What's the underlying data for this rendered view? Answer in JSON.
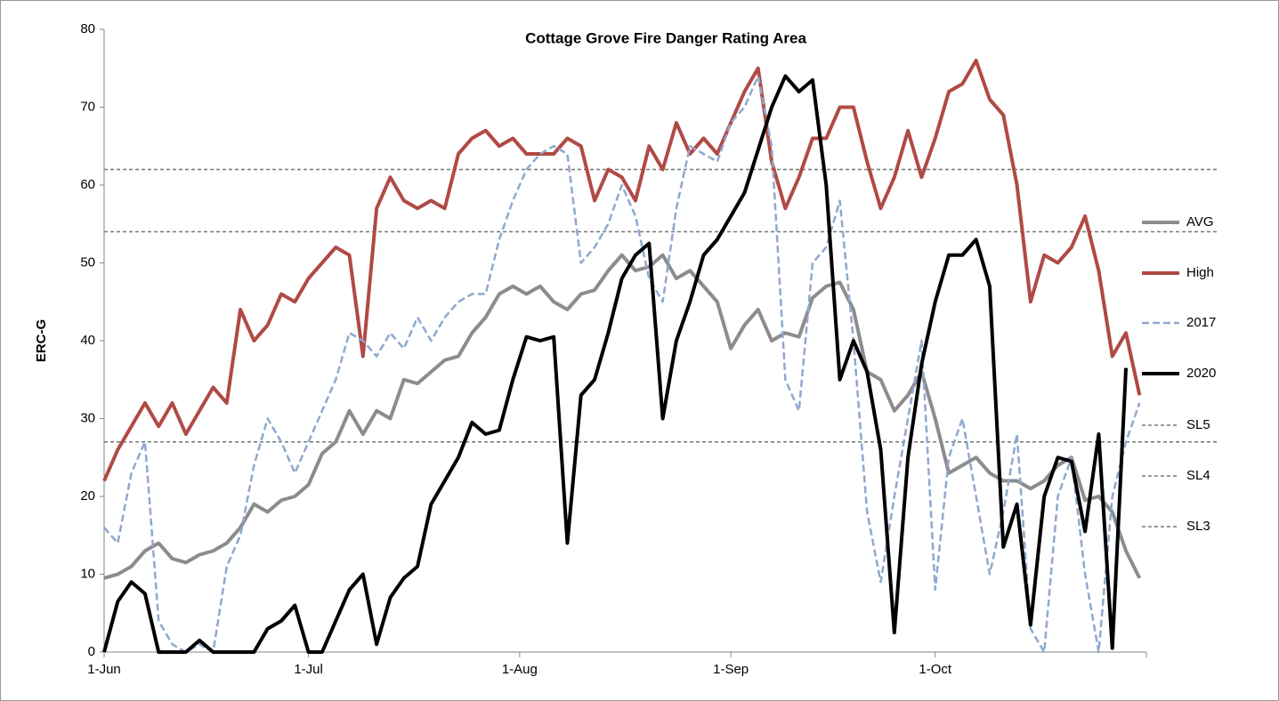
{
  "chart_data": {
    "type": "line",
    "title": "Cottage Grove Fire Danger Rating Area",
    "ylabel": "ERC-G",
    "x": [
      0,
      2,
      4,
      6,
      8,
      10,
      12,
      14,
      16,
      18,
      20,
      22,
      24,
      26,
      28,
      30,
      32,
      34,
      36,
      38,
      40,
      42,
      44,
      46,
      48,
      50,
      52,
      54,
      56,
      58,
      60,
      62,
      64,
      66,
      68,
      70,
      72,
      74,
      76,
      78,
      80,
      82,
      84,
      86,
      88,
      90,
      92,
      94,
      96,
      98,
      100,
      102,
      104,
      106,
      108,
      110,
      112,
      114,
      116,
      118,
      120,
      122,
      124,
      126,
      128,
      130,
      132,
      134,
      136,
      138,
      140,
      142,
      144,
      146,
      148,
      150,
      152
    ],
    "xlim": [
      0,
      153
    ],
    "xticks": [
      {
        "value": 0,
        "label": "1-Jun"
      },
      {
        "value": 30,
        "label": "1-Jul"
      },
      {
        "value": 61,
        "label": "1-Aug"
      },
      {
        "value": 92,
        "label": "1-Sep"
      },
      {
        "value": 122,
        "label": "1-Oct"
      }
    ],
    "ylim": [
      0,
      80
    ],
    "yticks": [
      0,
      10,
      20,
      30,
      40,
      50,
      60,
      70,
      80
    ],
    "series": [
      {
        "name": "AVG",
        "color": "#8c8c8c",
        "dash": false,
        "width": 4,
        "values": [
          9.5,
          10,
          11,
          13,
          14,
          12,
          11.5,
          12.5,
          13,
          14,
          16,
          19,
          18,
          19.5,
          20,
          21.5,
          25.5,
          27,
          31,
          28,
          31,
          30,
          35,
          34.5,
          36,
          37.5,
          38,
          41,
          43,
          46,
          47,
          46,
          47,
          45,
          44,
          46,
          46.5,
          49,
          51,
          49,
          49.5,
          51,
          48,
          49,
          47,
          45,
          39,
          42,
          44,
          40,
          41,
          40.5,
          45.5,
          47,
          47.5,
          44,
          36,
          35,
          31,
          33,
          36,
          30,
          23,
          24,
          25,
          23,
          22,
          22,
          21,
          22,
          24,
          25,
          19.5,
          20,
          18,
          13,
          9.5
        ]
      },
      {
        "name": "High",
        "color": "#b04a45",
        "dash": false,
        "width": 4,
        "values": [
          22,
          26,
          29,
          32,
          29,
          32,
          28,
          31,
          34,
          32,
          44,
          40,
          42,
          46,
          45,
          48,
          50,
          52,
          51,
          38,
          57,
          61,
          58,
          57,
          58,
          57,
          64,
          66,
          67,
          65,
          66,
          64,
          64,
          64,
          66,
          65,
          58,
          62,
          61,
          58,
          65,
          62,
          68,
          64,
          66,
          64,
          68,
          72,
          75,
          63,
          57,
          61,
          66,
          66,
          70,
          70,
          63,
          57,
          61,
          67,
          61,
          66,
          72,
          73,
          76,
          71,
          69,
          60,
          45,
          51,
          50,
          52,
          56,
          49,
          38,
          41,
          33
        ]
      },
      {
        "name": "2017",
        "color": "#8fa8cf",
        "dash": true,
        "width": 2.5,
        "values": [
          16,
          14,
          23,
          27,
          4,
          1,
          0,
          1,
          0,
          11,
          15,
          24,
          30,
          27,
          23,
          27,
          31,
          35,
          41,
          40,
          38,
          41,
          39,
          43,
          40,
          43,
          45,
          46,
          46,
          53,
          58,
          62,
          64,
          65,
          64,
          50,
          52,
          55,
          60,
          56,
          48,
          45,
          57,
          65,
          64,
          63,
          68,
          70,
          74,
          65,
          35,
          31,
          50,
          52,
          58,
          40,
          18,
          9,
          20,
          30,
          40,
          8,
          25,
          30,
          20,
          10,
          18,
          28,
          3,
          0,
          20,
          25,
          10,
          0,
          20,
          27,
          32
        ]
      },
      {
        "name": "2020",
        "color": "#000000",
        "dash": false,
        "width": 4,
        "values": [
          0,
          6.5,
          9,
          7.5,
          0,
          0,
          0,
          1.5,
          0,
          0,
          0,
          0,
          3,
          4,
          6,
          0,
          0,
          4,
          8,
          10,
          1,
          7,
          9.5,
          11,
          19,
          22,
          25,
          29.5,
          28,
          28.5,
          35,
          40.5,
          40,
          40.5,
          14,
          33,
          35,
          41,
          48,
          51,
          52.5,
          30,
          40,
          45,
          51,
          53,
          56,
          59,
          64.5,
          70,
          74,
          72,
          73.5,
          60,
          35,
          40,
          36,
          26,
          2.5,
          25,
          37,
          45,
          51,
          51,
          53,
          47,
          13.5,
          19,
          3.5,
          20,
          25,
          24.5,
          15.5,
          28,
          0.5,
          36.5,
          null
        ]
      }
    ],
    "reference_lines": [
      {
        "name": "SL5",
        "value": 62
      },
      {
        "name": "SL4",
        "value": 54
      },
      {
        "name": "SL3",
        "value": 27
      }
    ],
    "reference_color": "#777777"
  }
}
